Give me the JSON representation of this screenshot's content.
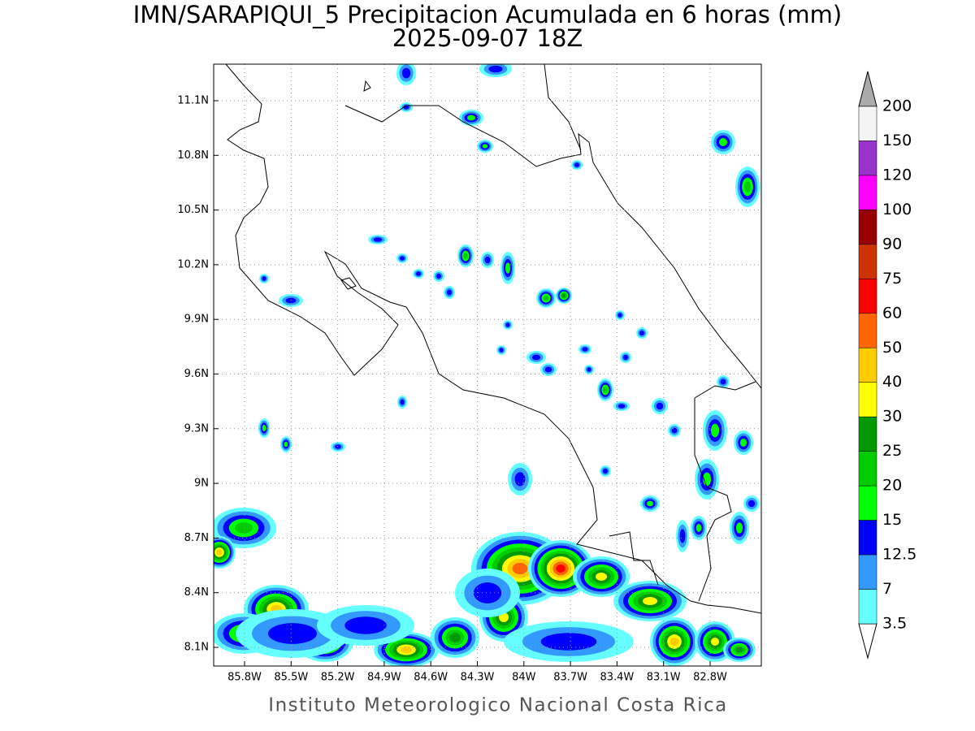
{
  "title": "IMN/SARAPIQUI_5 Precipitacion Acumulada en 6 horas (mm)",
  "subtitle": "2025-09-07 18Z",
  "map": {
    "lat_ticks": [
      "11.1N",
      "10.8N",
      "10.5N",
      "10.2N",
      "9.9N",
      "9.6N",
      "9.3N",
      "9N",
      "8.7N",
      "8.4N",
      "8.1N"
    ],
    "lon_ticks": [
      "85.8W",
      "85.5W",
      "85.2W",
      "84.9W",
      "84.6W",
      "84.3W",
      "84W",
      "83.7W",
      "83.4W",
      "83.1W",
      "82.8W"
    ]
  },
  "colorbar": {
    "levels": [
      "200",
      "150",
      "120",
      "100",
      "90",
      "75",
      "60",
      "50",
      "40",
      "30",
      "25",
      "20",
      "15",
      "12.5",
      "7",
      "3.5"
    ],
    "colors": [
      "#f4f4f4",
      "#9933cc",
      "#ff00ff",
      "#990000",
      "#cc3300",
      "#ff0000",
      "#ff6600",
      "#ffcc00",
      "#ffff00",
      "#009900",
      "#00cc00",
      "#00ff00",
      "#0000ff",
      "#3399ff",
      "#66ffff"
    ]
  },
  "footer": "Instituto Meteorologico Nacional Costa Rica"
}
